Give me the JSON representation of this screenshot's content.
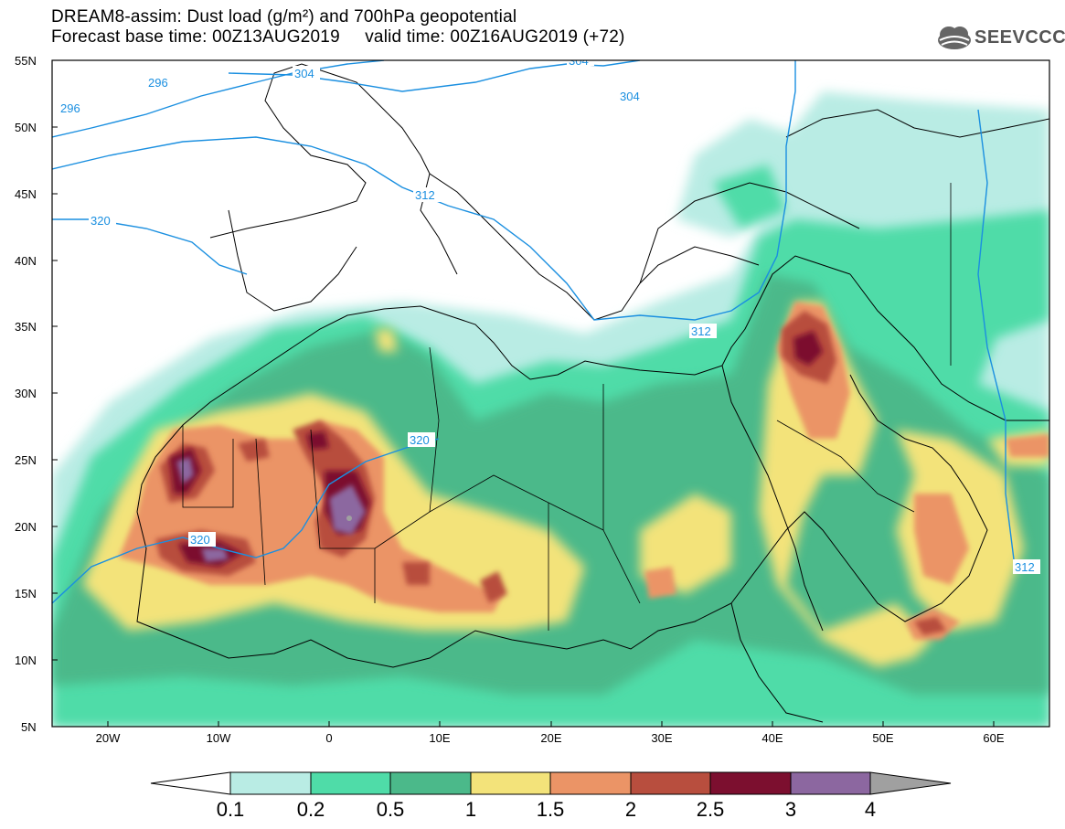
{
  "title": {
    "line1": "DREAM8-assim: Dust load (g/m²) and 700hPa geopotential",
    "line2": "Forecast base time: 00Z13AUG2019     valid time: 00Z16AUG2019 (+72)"
  },
  "logo": {
    "text": "SEEVCCC",
    "icon": "cloud-icon"
  },
  "map": {
    "lat_ticks": [
      "55N",
      "50N",
      "45N",
      "40N",
      "35N",
      "30N",
      "25N",
      "20N",
      "15N",
      "10N",
      "5N"
    ],
    "lon_ticks": [
      "20W",
      "10W",
      "0",
      "10E",
      "20E",
      "30E",
      "40E",
      "50E",
      "60E"
    ],
    "lat_range": [
      5,
      55
    ],
    "lon_range": [
      -25,
      65
    ]
  },
  "contours": {
    "color": "#1a8fe0",
    "labels": [
      "296",
      "296",
      "304",
      "304",
      "304",
      "312",
      "312",
      "312",
      "320",
      "320",
      "320"
    ]
  },
  "colorbar": {
    "ticks": [
      "0.1",
      "0.2",
      "0.5",
      "1",
      "1.5",
      "2",
      "2.5",
      "3",
      "4"
    ],
    "colors": [
      "#ffffff",
      "#b9ece4",
      "#4fdca8",
      "#4bb98a",
      "#f3e37a",
      "#eb9466",
      "#b84e3e",
      "#7c0f2f",
      "#8c67a0",
      "#a0a0a0"
    ]
  }
}
